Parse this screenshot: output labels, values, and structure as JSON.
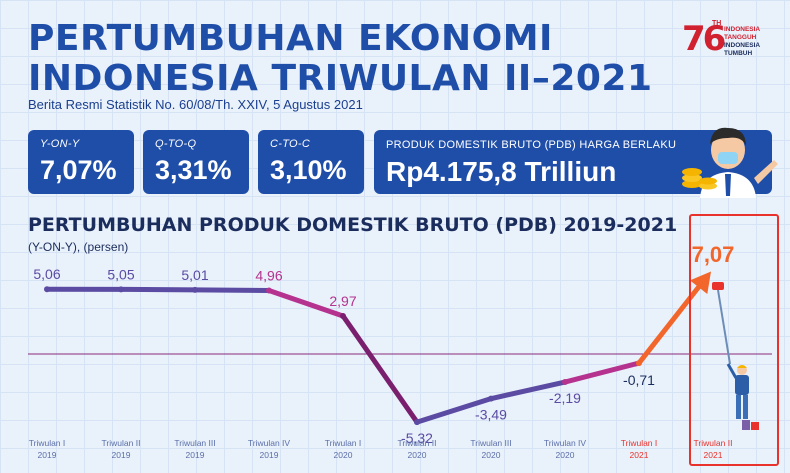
{
  "header": {
    "title_line1": "PERTUMBUHAN EKONOMI",
    "title_line2": "INDONESIA TRIWULAN II–2021",
    "subtitle": "Berita Resmi Statistik No. 60/08/Th. XXIV, 5 Agustus 2021"
  },
  "logo": {
    "mark": "76",
    "th": "TH",
    "line1": "INDONESIA",
    "line2": "TANGGUH",
    "line3": "INDONESIA",
    "line4": "TUMBUH"
  },
  "cards": {
    "yoy": {
      "label": "Y-ON-Y",
      "value": "7,07%"
    },
    "qtoq": {
      "label": "Q-TO-Q",
      "value": "3,31%"
    },
    "ctoc": {
      "label": "C-TO-C",
      "value": "3,10%"
    },
    "pdb": {
      "label": "PRODUK DOMESTIK BRUTO (PDB) HARGA BERLAKU",
      "value": "Rp4.175,8 Trilliun"
    }
  },
  "colors": {
    "brand_blue": "#1f4ea9",
    "series_purple": "#5b4ba3",
    "series_magenta": "#b5338f",
    "series_dark": "#7a1f6e",
    "highlight_orange": "#f2662b",
    "highlight_red": "#e8322b",
    "zero_line": "#8a2a7a"
  },
  "icons": [
    "mascot-icon",
    "coins-icon",
    "worker-icon",
    "paint-roller-icon"
  ],
  "chart_data": {
    "type": "line",
    "title": "PERTUMBUHAN PRODUK DOMESTIK BRUTO (PDB) 2019-2021",
    "subtitle": "(Y-ON-Y), (persen)",
    "ylim": [
      -6,
      8
    ],
    "categories": [
      {
        "q": "Triwulan I",
        "y": "2019"
      },
      {
        "q": "Triwulan II",
        "y": "2019"
      },
      {
        "q": "Triwulan III",
        "y": "2019"
      },
      {
        "q": "Triwulan IV",
        "y": "2019"
      },
      {
        "q": "Triwulan I",
        "y": "2020"
      },
      {
        "q": "Triwulan II",
        "y": "2020"
      },
      {
        "q": "Triwulan III",
        "y": "2020"
      },
      {
        "q": "Triwulan IV",
        "y": "2020"
      },
      {
        "q": "Triwulan I",
        "y": "2021"
      },
      {
        "q": "Triwulan II",
        "y": "2021"
      }
    ],
    "values": [
      5.06,
      5.05,
      5.01,
      4.96,
      2.97,
      -5.32,
      -3.49,
      -2.19,
      -0.71,
      7.07
    ],
    "value_labels": [
      "5,06",
      "5,05",
      "5,01",
      "4,96",
      "2,97",
      "-5,32",
      "-3,49",
      "-2,19",
      "-0,71",
      "7,07"
    ],
    "highlight": "Triwulan II 2021",
    "grid": true
  }
}
